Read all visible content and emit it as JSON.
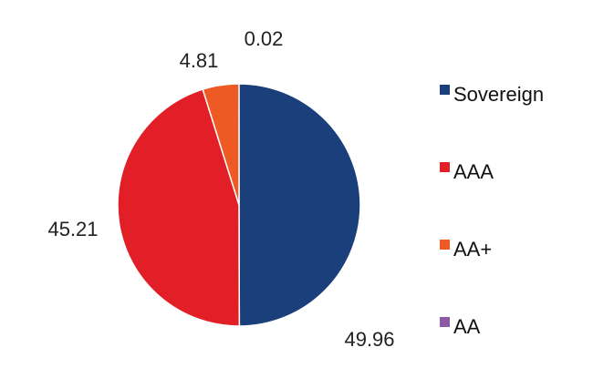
{
  "chart_data": {
    "type": "pie",
    "title": "",
    "categories": [
      "Sovereign",
      "AAA",
      "AA+",
      "AA"
    ],
    "values": [
      49.96,
      45.21,
      4.81,
      0.02
    ],
    "data_labels": [
      "49.96",
      "45.21",
      "4.81",
      "0.02"
    ],
    "colors": [
      "#1b3f7a",
      "#e21f26",
      "#ee5a24",
      "#8e5aa8"
    ],
    "legend": {
      "placement": "right",
      "entries": [
        "Sovereign",
        "AAA",
        "AA+",
        "AA"
      ]
    },
    "start_angle_deg": 0,
    "direction": "clockwise"
  }
}
